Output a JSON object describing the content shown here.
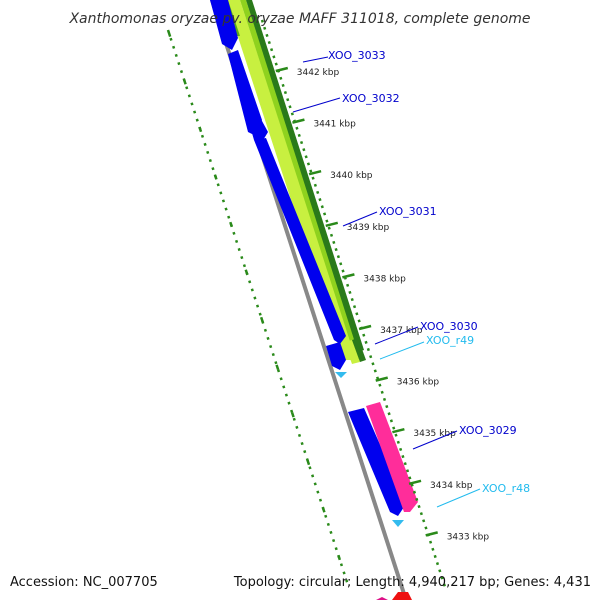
{
  "title": "Xanthomonas oryzae pv. oryzae MAFF 311018, complete genome",
  "footer": {
    "accession": "Accession: NC_007705",
    "summary": "Topology: circular; Length: 4,940,217 bp; Genes: 4,431"
  },
  "colors": {
    "cds": "#0000ee",
    "rrna": "#ff2d9a",
    "trna": "#33bbee",
    "gc_dark": "#2a7a1a",
    "gc_light": "#c8f040",
    "backbone": "#888888",
    "dotted_ring": "#2a8a1a",
    "cds_label": "#0000cc",
    "rna_label": "#22bbee"
  },
  "ticks": [
    {
      "label": "3442 kbp"
    },
    {
      "label": "3441 kbp"
    },
    {
      "label": "3440 kbp"
    },
    {
      "label": "3439 kbp"
    },
    {
      "label": "3438 kbp"
    },
    {
      "label": "3437 kbp"
    },
    {
      "label": "3436 kbp"
    },
    {
      "label": "3435 kbp"
    },
    {
      "label": "3434 kbp"
    },
    {
      "label": "3433 kbp"
    }
  ],
  "genes": [
    {
      "name": "XOO_3033",
      "type": "CDS"
    },
    {
      "name": "XOO_3032",
      "type": "CDS"
    },
    {
      "name": "XOO_3031",
      "type": "CDS"
    },
    {
      "name": "XOO_3030",
      "type": "CDS"
    },
    {
      "name": "XOO_r49",
      "type": "tRNA"
    },
    {
      "name": "XOO_3029",
      "type": "CDS"
    },
    {
      "name": "XOO_r48",
      "type": "tRNA"
    }
  ]
}
